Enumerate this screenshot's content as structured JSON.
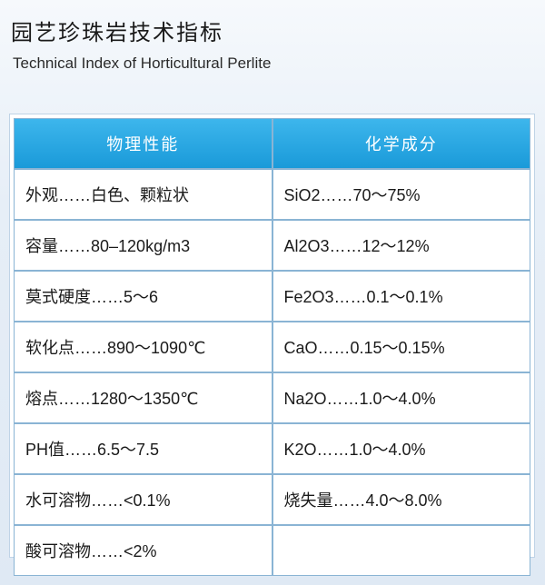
{
  "title": {
    "cn": "园艺珍珠岩技术指标",
    "en": "Technical Index of Horticultural Perlite"
  },
  "table": {
    "headers": [
      "物理性能",
      "化学成分"
    ],
    "rows": [
      [
        "外观……白色、颗粒状",
        "SiO2……70～75%"
      ],
      [
        "容量……80–120kg/m3",
        "Al2O3……12～12%"
      ],
      [
        "莫式硬度……5～6",
        "Fe2O3……0.1～0.1%"
      ],
      [
        "软化点……890～1090℃",
        "CaO……0.15～0.15%"
      ],
      [
        "熔点……1280～1350℃",
        "Na2O……1.0～4.0%"
      ],
      [
        "PH值……6.5～7.5",
        "K2O……1.0～4.0%"
      ],
      [
        "水可溶物……<0.1%",
        "烧失量……4.0～8.0%"
      ],
      [
        "酸可溶物……<2%",
        ""
      ]
    ]
  },
  "colors": {
    "header_bg": "#1a9ad9",
    "border": "#8ab4d4"
  }
}
